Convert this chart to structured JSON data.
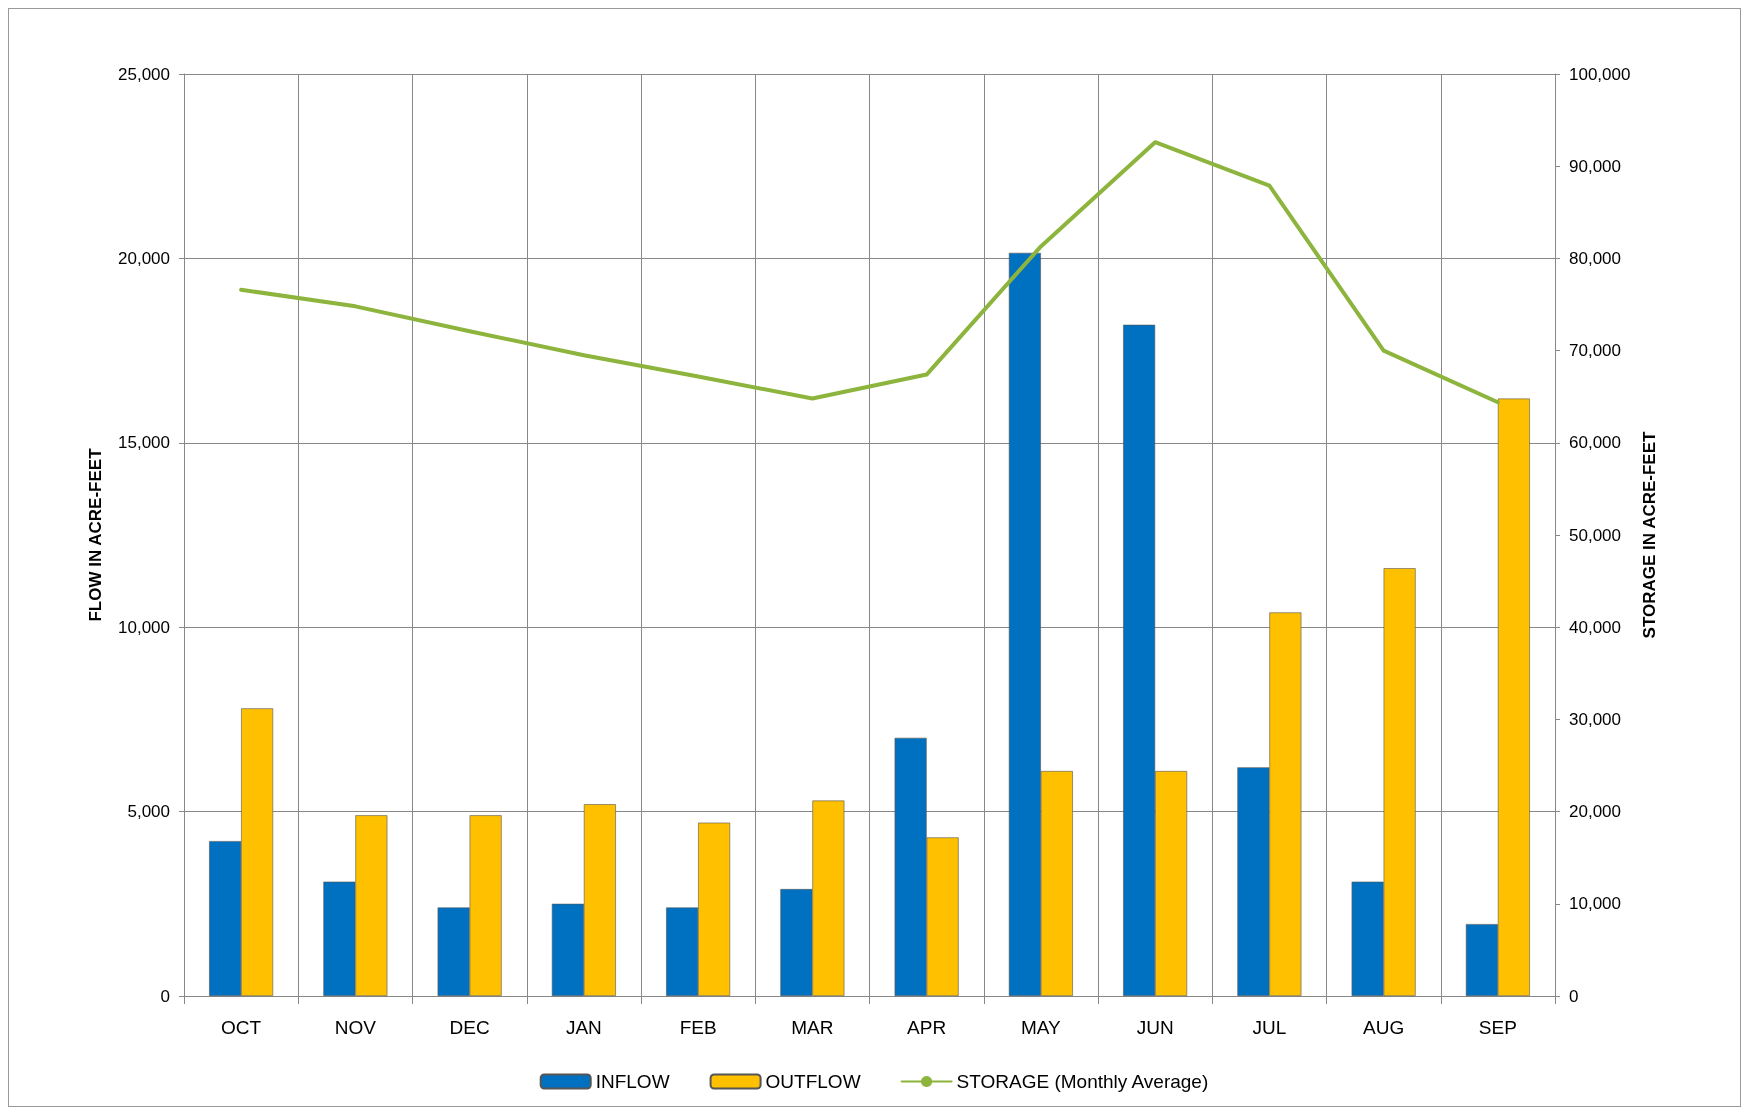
{
  "chart_data": {
    "type": "bar",
    "xlabel": null,
    "ylabel": "FLOW IN ACRE-FEET",
    "y2label": "STORAGE IN ACRE-FEET",
    "categories": [
      "OCT",
      "NOV",
      "DEC",
      "JAN",
      "FEB",
      "MAR",
      "APR",
      "MAY",
      "JUN",
      "JUL",
      "AUG",
      "SEP"
    ],
    "series": [
      {
        "name": "INFLOW",
        "color": "#0070c0",
        "values": [
          4200,
          3100,
          2400,
          2500,
          2400,
          2900,
          7000,
          20150,
          18200,
          6200,
          3100,
          1950
        ]
      },
      {
        "name": "OUTFLOW",
        "color": "#ffc000",
        "values": [
          7800,
          4900,
          4900,
          5200,
          4700,
          5300,
          4300,
          6100,
          6100,
          10400,
          11600,
          16200
        ]
      },
      {
        "name": "STORAGE (Monthly Average)",
        "type": "line",
        "axis": "y2",
        "color": "#8db43c",
        "values": [
          76600,
          74800,
          72100,
          69500,
          67200,
          64800,
          67400,
          81300,
          92600,
          87900,
          70000,
          64400
        ]
      }
    ],
    "ylim": [
      0,
      25000
    ],
    "yticks": [
      0,
      {
        "value": 5000,
        "label": "5,000"
      },
      {
        "value": 10000,
        "label": "10,000"
      },
      {
        "value": 15000,
        "label": "15,000"
      },
      {
        "value": 20000,
        "label": "20,000"
      },
      {
        "value": 25000,
        "label": "25,000"
      }
    ],
    "y2lim": [
      0,
      100000
    ],
    "y2ticks": [
      0,
      {
        "value": 10000,
        "label": "10,000"
      },
      {
        "value": 20000,
        "label": "20,000"
      },
      {
        "value": 30000,
        "label": "30,000"
      },
      {
        "value": 40000,
        "label": "40,000"
      },
      {
        "value": 50000,
        "label": "50,000"
      },
      {
        "value": 60000,
        "label": "60,000"
      },
      {
        "value": 70000,
        "label": "70,000"
      },
      {
        "value": 80000,
        "label": "80,000"
      },
      {
        "value": 90000,
        "label": "90,000"
      },
      {
        "value": 100000,
        "label": "100,000"
      }
    ],
    "grid": true,
    "legend": "bottom",
    "marker": "none",
    "line_style": "solid"
  }
}
